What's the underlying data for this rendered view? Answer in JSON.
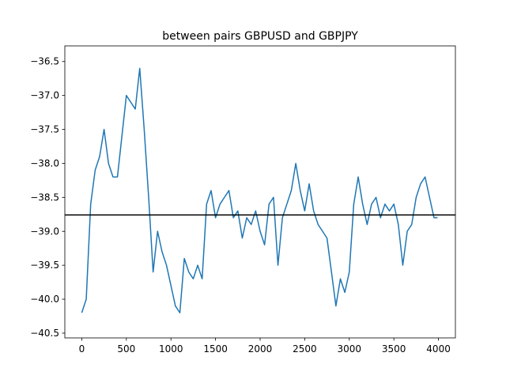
{
  "chart_data": {
    "type": "line",
    "title": "between pairs GBPUSD and GBPJPY",
    "x": [
      0,
      50,
      100,
      150,
      200,
      250,
      300,
      350,
      400,
      450,
      500,
      550,
      600,
      650,
      700,
      750,
      800,
      850,
      900,
      950,
      1000,
      1050,
      1100,
      1150,
      1200,
      1250,
      1300,
      1350,
      1400,
      1450,
      1500,
      1550,
      1600,
      1650,
      1700,
      1750,
      1800,
      1850,
      1900,
      1950,
      2000,
      2050,
      2100,
      2150,
      2200,
      2250,
      2300,
      2350,
      2400,
      2450,
      2500,
      2550,
      2600,
      2650,
      2700,
      2750,
      2800,
      2850,
      2900,
      2950,
      3000,
      3050,
      3100,
      3150,
      3200,
      3250,
      3300,
      3350,
      3400,
      3450,
      3500,
      3550,
      3600,
      3650,
      3700,
      3750,
      3800,
      3850,
      3900,
      3950,
      3990
    ],
    "series": [
      {
        "color": "#1f77b4",
        "values": [
          -40.2,
          -40.0,
          -38.6,
          -38.1,
          -37.9,
          -37.5,
          -38.0,
          -38.2,
          -38.2,
          -37.6,
          -37.0,
          -37.1,
          -37.2,
          -36.6,
          -37.5,
          -38.5,
          -39.6,
          -39.0,
          -39.3,
          -39.5,
          -39.8,
          -40.1,
          -40.2,
          -39.4,
          -39.6,
          -39.7,
          -39.5,
          -39.7,
          -38.6,
          -38.4,
          -38.8,
          -38.6,
          -38.5,
          -38.4,
          -38.8,
          -38.7,
          -39.1,
          -38.8,
          -38.9,
          -38.7,
          -39.0,
          -39.2,
          -38.6,
          -38.5,
          -39.5,
          -38.8,
          -38.6,
          -38.4,
          -38.0,
          -38.4,
          -38.7,
          -38.3,
          -38.7,
          -38.9,
          -39.0,
          -39.1,
          -39.6,
          -40.1,
          -39.7,
          -39.9,
          -39.6,
          -38.6,
          -38.2,
          -38.6,
          -38.9,
          -38.6,
          -38.5,
          -38.8,
          -38.6,
          -38.7,
          -38.6,
          -38.9,
          -39.5,
          -39.0,
          -38.9,
          -38.5,
          -38.3,
          -38.2,
          -38.5,
          -38.8,
          -38.8
        ]
      }
    ],
    "hline": {
      "value": -38.76,
      "color": "#000000"
    },
    "xlim": [
      -190,
      4190
    ],
    "xticks": [
      0,
      500,
      1000,
      1500,
      2000,
      2500,
      3000,
      3500,
      4000
    ],
    "ylim": [
      -40.57,
      -36.27
    ],
    "yticks": [
      {
        "value": -36.5,
        "label": "−36.5"
      },
      {
        "value": -37.0,
        "label": "−37.0"
      },
      {
        "value": -37.5,
        "label": "−37.5"
      },
      {
        "value": -38.0,
        "label": "−38.0"
      },
      {
        "value": -38.5,
        "label": "−38.5"
      },
      {
        "value": -39.0,
        "label": "−39.0"
      },
      {
        "value": -39.5,
        "label": "−39.5"
      },
      {
        "value": -40.0,
        "label": "−40.0"
      },
      {
        "value": -40.5,
        "label": "−40.5"
      }
    ]
  }
}
